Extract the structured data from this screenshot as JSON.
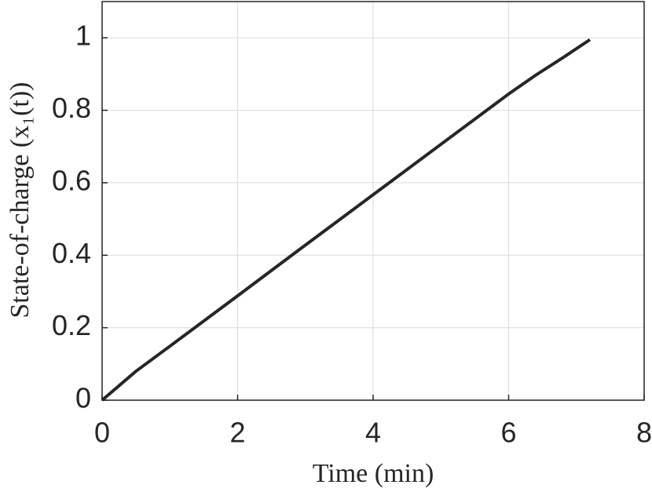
{
  "chart_data": {
    "type": "line",
    "xlabel": "Time (min)",
    "ylabel": "State-of-charge (x₁(t))",
    "x": [
      0,
      0.5,
      1,
      2,
      3,
      4,
      5,
      6,
      6.4,
      6.8,
      7.2
    ],
    "series": [
      {
        "color": "#262626",
        "values": [
          0,
          0.08,
          0.149,
          0.288,
          0.428,
          0.567,
          0.706,
          0.845,
          0.897,
          0.945,
          0.995
        ]
      }
    ],
    "xlim": [
      0,
      8
    ],
    "xticks": [
      0,
      2,
      4,
      6,
      8
    ],
    "ylim": [
      0,
      1.1
    ],
    "yticks": [
      0,
      0.2,
      0.4,
      0.6,
      0.8,
      1
    ],
    "grid": true
  }
}
